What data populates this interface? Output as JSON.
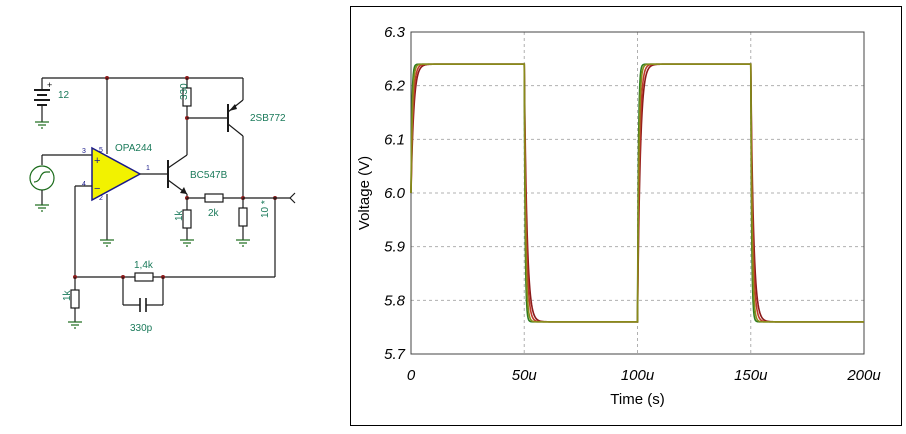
{
  "schematic": {
    "battery_label": "12",
    "opamp_label": "OPA244",
    "q1_label": "BC547B",
    "q2_label": "2SB772",
    "r_330_label": "330",
    "r_1k_emitter_label": "1k",
    "r_2k_label": "2k",
    "r_load_label": "10 *",
    "r_1k_fb_label": "1k",
    "r_1_4k_label": "1,4k",
    "c_330p_label": "330p",
    "pin_3": "3",
    "pin_4": "4",
    "pin_5": "5",
    "pin_2": "2",
    "pin_1": "1",
    "plus_sign": "+",
    "minus_sign": "−",
    "bat_plus": "+"
  },
  "chart_data": {
    "type": "line",
    "title": "",
    "xlabel": "Time (s)",
    "ylabel": "Voltage (V)",
    "xlim": [
      0,
      0.0002
    ],
    "ylim": [
      5.7,
      6.3
    ],
    "x_ticks": [
      0,
      5e-05,
      0.0001,
      0.00015,
      0.0002
    ],
    "x_tick_labels": [
      "0",
      "50u",
      "100u",
      "150u",
      "200u"
    ],
    "y_ticks": [
      5.7,
      5.8,
      5.9,
      6.0,
      6.1,
      6.2,
      6.3
    ],
    "y_tick_labels": [
      "5.7",
      "5.8",
      "5.9",
      "6.0",
      "6.1",
      "6.2",
      "6.3"
    ],
    "grid": true,
    "series": [
      {
        "color": "#8b1a1a",
        "high": 6.24,
        "low": 5.76,
        "period": 0.0001,
        "edge_tau": 1.2e-06
      },
      {
        "color": "#c0392b",
        "high": 6.24,
        "low": 5.76,
        "period": 0.0001,
        "edge_tau": 9e-07
      },
      {
        "color": "#2e7d1e",
        "high": 6.24,
        "low": 5.76,
        "period": 0.0001,
        "edge_tau": 4e-07
      },
      {
        "color": "#8a8a1a",
        "high": 6.24,
        "low": 5.76,
        "period": 0.0001,
        "edge_tau": 6e-07
      }
    ]
  }
}
